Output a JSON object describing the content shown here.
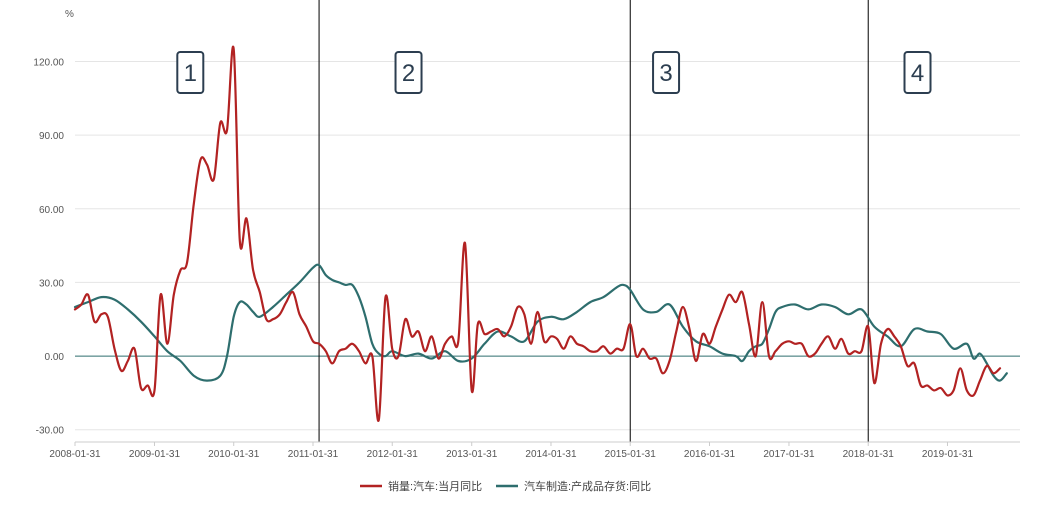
{
  "chart_data": {
    "type": "line",
    "y_unit": "%",
    "ylim": [
      -35,
      132
    ],
    "y_ticks": [
      "120.00",
      "90.00",
      "60.00",
      "30.00",
      "0.00",
      "-30.00"
    ],
    "y_tick_values": [
      120,
      90,
      60,
      30,
      0,
      -30
    ],
    "x_range": [
      "2008-01-31",
      "2019-12-31"
    ],
    "x_ticks": [
      "2008-01-31",
      "2009-01-31",
      "2010-01-31",
      "2011-01-31",
      "2012-01-31",
      "2013-01-31",
      "2014-01-31",
      "2015-01-31",
      "2016-01-31",
      "2017-01-31",
      "2018-01-31",
      "2019-01-31"
    ],
    "grid": true,
    "legend_position": "bottom-center",
    "colors": {
      "sales": "#b22222",
      "inventory": "#2e6e6e",
      "divider": "#000000",
      "grid": "#e5e5e5"
    },
    "phases": [
      {
        "label": "1",
        "x": "2009-07-15"
      },
      {
        "label": "2",
        "x": "2012-04-15"
      },
      {
        "label": "3",
        "x": "2015-07-15"
      },
      {
        "label": "4",
        "x": "2018-09-15"
      }
    ],
    "dividers": [
      "2011-02-28",
      "2015-01-31",
      "2018-01-31"
    ],
    "series": [
      {
        "name": "销量:汽车:当月同比",
        "color": "#b22222",
        "points": [
          [
            "2008-01-31",
            19
          ],
          [
            "2008-02-29",
            21
          ],
          [
            "2008-03-31",
            25
          ],
          [
            "2008-04-30",
            14
          ],
          [
            "2008-05-31",
            17
          ],
          [
            "2008-06-30",
            16
          ],
          [
            "2008-07-31",
            3
          ],
          [
            "2008-08-31",
            -6
          ],
          [
            "2008-09-30",
            -2
          ],
          [
            "2008-10-31",
            3
          ],
          [
            "2008-11-30",
            -13
          ],
          [
            "2008-12-31",
            -12
          ],
          [
            "2009-01-31",
            -14
          ],
          [
            "2009-02-28",
            25
          ],
          [
            "2009-03-31",
            5
          ],
          [
            "2009-04-30",
            25
          ],
          [
            "2009-05-31",
            35
          ],
          [
            "2009-06-30",
            38
          ],
          [
            "2009-07-31",
            62
          ],
          [
            "2009-08-31",
            80
          ],
          [
            "2009-09-30",
            78
          ],
          [
            "2009-10-31",
            72
          ],
          [
            "2009-11-30",
            95
          ],
          [
            "2009-12-31",
            92
          ],
          [
            "2010-01-31",
            125
          ],
          [
            "2010-02-28",
            47
          ],
          [
            "2010-03-31",
            56
          ],
          [
            "2010-04-30",
            35
          ],
          [
            "2010-05-31",
            26
          ],
          [
            "2010-06-30",
            15
          ],
          [
            "2010-07-31",
            15
          ],
          [
            "2010-08-31",
            17
          ],
          [
            "2010-09-30",
            22
          ],
          [
            "2010-10-31",
            26
          ],
          [
            "2010-11-30",
            17
          ],
          [
            "2010-12-31",
            12
          ],
          [
            "2011-01-31",
            6
          ],
          [
            "2011-02-28",
            5
          ],
          [
            "2011-03-31",
            2
          ],
          [
            "2011-04-30",
            -3
          ],
          [
            "2011-05-31",
            2
          ],
          [
            "2011-06-30",
            3
          ],
          [
            "2011-07-31",
            5
          ],
          [
            "2011-08-31",
            2
          ],
          [
            "2011-09-30",
            -3
          ],
          [
            "2011-10-31",
            0
          ],
          [
            "2011-11-30",
            -26
          ],
          [
            "2011-12-31",
            24
          ],
          [
            "2012-01-31",
            3
          ],
          [
            "2012-02-29",
            0
          ],
          [
            "2012-03-31",
            15
          ],
          [
            "2012-04-30",
            8
          ],
          [
            "2012-05-31",
            10
          ],
          [
            "2012-06-30",
            2
          ],
          [
            "2012-07-31",
            8
          ],
          [
            "2012-08-31",
            -1
          ],
          [
            "2012-09-30",
            5
          ],
          [
            "2012-10-31",
            8
          ],
          [
            "2012-11-30",
            6
          ],
          [
            "2012-12-31",
            46
          ],
          [
            "2013-01-31",
            -14
          ],
          [
            "2013-02-28",
            13
          ],
          [
            "2013-03-31",
            9
          ],
          [
            "2013-04-30",
            10
          ],
          [
            "2013-05-31",
            11
          ],
          [
            "2013-06-30",
            8
          ],
          [
            "2013-07-31",
            12
          ],
          [
            "2013-08-31",
            20
          ],
          [
            "2013-09-30",
            17
          ],
          [
            "2013-10-31",
            5
          ],
          [
            "2013-11-30",
            18
          ],
          [
            "2013-12-31",
            6
          ],
          [
            "2014-01-31",
            8
          ],
          [
            "2014-02-28",
            7
          ],
          [
            "2014-03-31",
            3
          ],
          [
            "2014-04-30",
            8
          ],
          [
            "2014-05-31",
            5
          ],
          [
            "2014-06-30",
            4
          ],
          [
            "2014-07-31",
            2
          ],
          [
            "2014-08-31",
            2
          ],
          [
            "2014-09-30",
            4
          ],
          [
            "2014-10-31",
            1
          ],
          [
            "2014-11-30",
            3
          ],
          [
            "2014-12-31",
            3
          ],
          [
            "2015-01-31",
            13
          ],
          [
            "2015-02-28",
            0
          ],
          [
            "2015-03-31",
            3
          ],
          [
            "2015-04-30",
            -1
          ],
          [
            "2015-05-31",
            -1
          ],
          [
            "2015-06-30",
            -7
          ],
          [
            "2015-07-31",
            -2
          ],
          [
            "2015-08-31",
            10
          ],
          [
            "2015-09-30",
            20
          ],
          [
            "2015-10-31",
            11
          ],
          [
            "2015-11-30",
            -2
          ],
          [
            "2015-12-31",
            9
          ],
          [
            "2016-01-31",
            5
          ],
          [
            "2016-02-29",
            12
          ],
          [
            "2016-03-31",
            19
          ],
          [
            "2016-04-30",
            25
          ],
          [
            "2016-05-31",
            22
          ],
          [
            "2016-06-30",
            26
          ],
          [
            "2016-07-31",
            13
          ],
          [
            "2016-08-31",
            0
          ],
          [
            "2016-09-30",
            22
          ],
          [
            "2016-10-31",
            0
          ],
          [
            "2016-11-30",
            2
          ],
          [
            "2016-12-31",
            5
          ],
          [
            "2017-01-31",
            6
          ],
          [
            "2017-02-28",
            5
          ],
          [
            "2017-03-31",
            5
          ],
          [
            "2017-04-30",
            0
          ],
          [
            "2017-05-31",
            1
          ],
          [
            "2017-06-30",
            5
          ],
          [
            "2017-07-31",
            8
          ],
          [
            "2017-08-31",
            3
          ],
          [
            "2017-09-30",
            7
          ],
          [
            "2017-10-31",
            1
          ],
          [
            "2017-11-30",
            2
          ],
          [
            "2017-12-31",
            2
          ],
          [
            "2018-01-31",
            12
          ],
          [
            "2018-02-28",
            -11
          ],
          [
            "2018-03-31",
            5
          ],
          [
            "2018-04-30",
            11
          ],
          [
            "2018-05-31",
            8
          ],
          [
            "2018-06-30",
            4
          ],
          [
            "2018-07-31",
            -4
          ],
          [
            "2018-08-31",
            -3
          ],
          [
            "2018-09-30",
            -12
          ],
          [
            "2018-10-31",
            -12
          ],
          [
            "2018-11-30",
            -14
          ],
          [
            "2018-12-31",
            -13
          ],
          [
            "2019-01-31",
            -16
          ],
          [
            "2019-02-28",
            -14
          ],
          [
            "2019-03-31",
            -5
          ],
          [
            "2019-04-30",
            -14
          ],
          [
            "2019-05-31",
            -16
          ],
          [
            "2019-06-30",
            -10
          ],
          [
            "2019-07-31",
            -4
          ],
          [
            "2019-08-31",
            -7
          ],
          [
            "2019-09-30",
            -5
          ]
        ]
      },
      {
        "name": "汽车制造:产成品存货:同比",
        "color": "#2e6e6e",
        "points": [
          [
            "2008-01-31",
            20
          ],
          [
            "2008-03-31",
            22
          ],
          [
            "2008-05-31",
            24
          ],
          [
            "2008-07-31",
            23
          ],
          [
            "2008-09-30",
            19
          ],
          [
            "2008-11-30",
            14
          ],
          [
            "2009-01-31",
            8
          ],
          [
            "2009-03-31",
            2
          ],
          [
            "2009-05-31",
            -2
          ],
          [
            "2009-07-31",
            -8
          ],
          [
            "2009-09-30",
            -10
          ],
          [
            "2009-11-30",
            -8
          ],
          [
            "2009-12-31",
            0
          ],
          [
            "2010-01-31",
            16
          ],
          [
            "2010-02-28",
            22
          ],
          [
            "2010-03-31",
            21
          ],
          [
            "2010-04-30",
            18
          ],
          [
            "2010-05-31",
            16
          ],
          [
            "2010-07-31",
            20
          ],
          [
            "2010-09-30",
            25
          ],
          [
            "2010-11-30",
            30
          ],
          [
            "2011-01-31",
            36
          ],
          [
            "2011-02-28",
            37
          ],
          [
            "2011-03-31",
            33
          ],
          [
            "2011-04-30",
            31
          ],
          [
            "2011-05-31",
            30
          ],
          [
            "2011-06-30",
            29
          ],
          [
            "2011-07-31",
            29
          ],
          [
            "2011-08-31",
            24
          ],
          [
            "2011-09-30",
            16
          ],
          [
            "2011-10-31",
            5
          ],
          [
            "2011-11-30",
            1
          ],
          [
            "2011-12-31",
            0
          ],
          [
            "2012-01-31",
            2
          ],
          [
            "2012-03-31",
            0
          ],
          [
            "2012-05-31",
            1
          ],
          [
            "2012-07-31",
            -1
          ],
          [
            "2012-09-30",
            2
          ],
          [
            "2012-11-30",
            -2
          ],
          [
            "2013-01-31",
            -1
          ],
          [
            "2013-03-31",
            5
          ],
          [
            "2013-05-31",
            10
          ],
          [
            "2013-07-31",
            8
          ],
          [
            "2013-09-30",
            6
          ],
          [
            "2013-11-30",
            14
          ],
          [
            "2014-01-31",
            16
          ],
          [
            "2014-03-31",
            15
          ],
          [
            "2014-05-31",
            18
          ],
          [
            "2014-07-31",
            22
          ],
          [
            "2014-09-30",
            24
          ],
          [
            "2014-11-30",
            28
          ],
          [
            "2014-12-31",
            29
          ],
          [
            "2015-01-31",
            27
          ],
          [
            "2015-03-31",
            19
          ],
          [
            "2015-05-31",
            18
          ],
          [
            "2015-07-31",
            21
          ],
          [
            "2015-09-30",
            12
          ],
          [
            "2015-11-30",
            6
          ],
          [
            "2016-01-31",
            4
          ],
          [
            "2016-03-31",
            1
          ],
          [
            "2016-05-31",
            0
          ],
          [
            "2016-06-30",
            -2
          ],
          [
            "2016-07-31",
            2
          ],
          [
            "2016-08-31",
            4
          ],
          [
            "2016-09-30",
            5
          ],
          [
            "2016-10-31",
            11
          ],
          [
            "2016-11-30",
            18
          ],
          [
            "2016-12-31",
            20
          ],
          [
            "2017-02-28",
            21
          ],
          [
            "2017-04-30",
            19
          ],
          [
            "2017-06-30",
            21
          ],
          [
            "2017-08-31",
            20
          ],
          [
            "2017-10-31",
            17
          ],
          [
            "2017-12-31",
            19
          ],
          [
            "2018-02-28",
            12
          ],
          [
            "2018-04-30",
            8
          ],
          [
            "2018-06-30",
            4
          ],
          [
            "2018-08-31",
            11
          ],
          [
            "2018-10-31",
            10
          ],
          [
            "2018-12-31",
            9
          ],
          [
            "2019-02-28",
            3
          ],
          [
            "2019-04-30",
            5
          ],
          [
            "2019-05-31",
            -1
          ],
          [
            "2019-06-30",
            1
          ],
          [
            "2019-07-31",
            -3
          ],
          [
            "2019-08-31",
            -8
          ],
          [
            "2019-09-30",
            -10
          ],
          [
            "2019-10-31",
            -7
          ]
        ]
      }
    ]
  }
}
